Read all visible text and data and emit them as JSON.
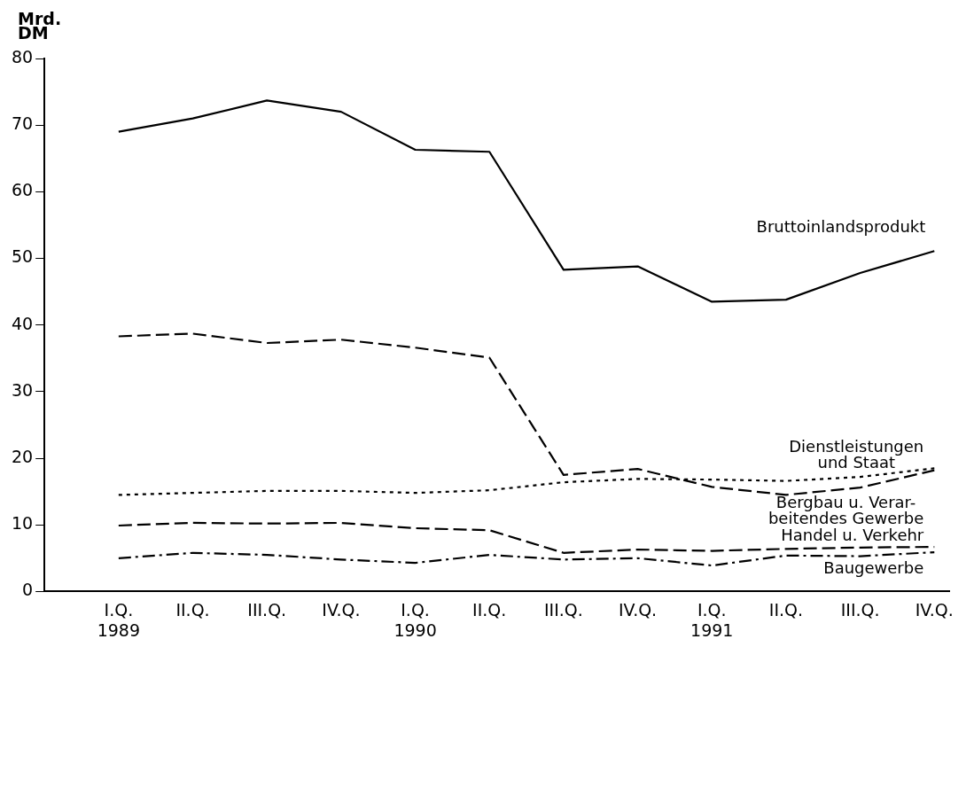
{
  "chart_data": {
    "type": "line",
    "ylabel": "Mrd.\nDM",
    "categories": [
      "I.Q.\n1989",
      "II.Q.",
      "III.Q.",
      "IV.Q.",
      "I.Q.\n1990",
      "II.Q.",
      "III.Q.",
      "IV.Q.",
      "I.Q.\n1991",
      "II.Q.",
      "III.Q.",
      "IV.Q."
    ],
    "ylim": [
      0,
      80
    ],
    "yticks": [
      0,
      10,
      20,
      30,
      40,
      50,
      60,
      70,
      80
    ],
    "grid": false,
    "legend": false,
    "marker": "none",
    "series": [
      {
        "name": "Bruttoinlandsprodukt",
        "color": "#000000",
        "line_style": "solid",
        "values": [
          69,
          71,
          73.7,
          72,
          66.3,
          66,
          48.3,
          48.8,
          43.5,
          43.8,
          47.8,
          51.1
        ]
      },
      {
        "name": "Dienstleistungen\nund Staat",
        "color": "#000000",
        "line_style": "dotted",
        "values": [
          14.5,
          14.8,
          15.1,
          15.1,
          14.8,
          15.2,
          16.4,
          16.9,
          16.8,
          16.6,
          17.2,
          18.5
        ]
      },
      {
        "name": "Bergbau u. Verar-\nbeitendes Gewerbe",
        "color": "#000000",
        "line_style": "dashed",
        "values": [
          38.3,
          38.7,
          37.3,
          37.8,
          36.6,
          35.1,
          17.5,
          18.4,
          15.7,
          14.5,
          15.6,
          18.2
        ]
      },
      {
        "name": "Handel u. Verkehr",
        "color": "#000000",
        "line_style": "dashed",
        "values": [
          9.9,
          10.3,
          10.2,
          10.3,
          9.5,
          9.2,
          5.8,
          6.3,
          6.1,
          6.4,
          6.6,
          6.7
        ]
      },
      {
        "name": "Baugewerbe",
        "color": "#000000",
        "line_style": "dashdot",
        "values": [
          5.0,
          5.8,
          5.5,
          4.8,
          4.3,
          5.5,
          4.8,
          5.0,
          3.9,
          5.4,
          5.3,
          5.9
        ]
      }
    ]
  }
}
